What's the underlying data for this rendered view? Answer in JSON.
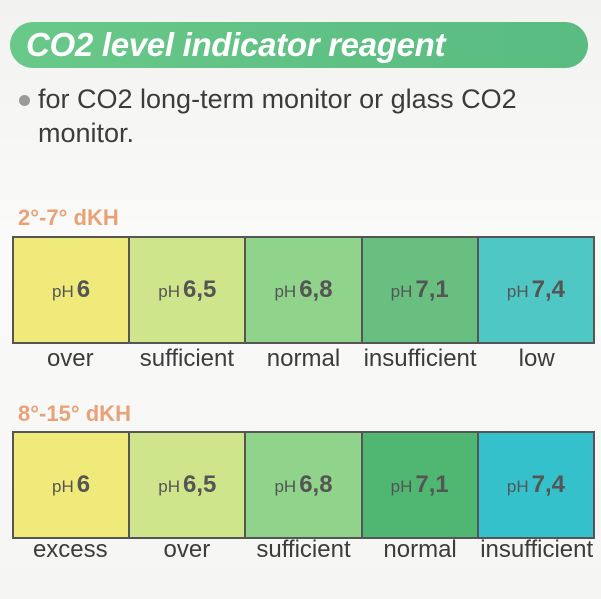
{
  "title": "CO2 level indicator reagent",
  "description": "for CO2 long-term monitor or glass CO2 monitor.",
  "sections": [
    {
      "range_label": "2°-7° dKH",
      "cells": [
        {
          "ph_prefix": "pH",
          "ph_value": "6",
          "label": "over",
          "color": "#f0ea7a"
        },
        {
          "ph_prefix": "pH",
          "ph_value": "6,5",
          "label": "sufficient",
          "color": "#cfe58b"
        },
        {
          "ph_prefix": "pH",
          "ph_value": "6,8",
          "label": "normal",
          "color": "#8fd48a"
        },
        {
          "ph_prefix": "pH",
          "ph_value": "7,1",
          "label": "insufficient",
          "color": "#69bf80"
        },
        {
          "ph_prefix": "pH",
          "ph_value": "7,4",
          "label": "low",
          "color": "#4fc7c4"
        }
      ]
    },
    {
      "range_label": "8°-15° dKH",
      "cells": [
        {
          "ph_prefix": "pH",
          "ph_value": "6",
          "label": "excess",
          "color": "#f0ea7a"
        },
        {
          "ph_prefix": "pH",
          "ph_value": "6,5",
          "label": "over",
          "color": "#cfe58b"
        },
        {
          "ph_prefix": "pH",
          "ph_value": "6,8",
          "label": "sufficient",
          "color": "#8fd48a"
        },
        {
          "ph_prefix": "pH",
          "ph_value": "7,1",
          "label": "normal",
          "color": "#4fb772"
        },
        {
          "ph_prefix": "pH",
          "ph_value": "7,4",
          "label": "insufficient",
          "color": "#35c1cc"
        }
      ]
    }
  ]
}
